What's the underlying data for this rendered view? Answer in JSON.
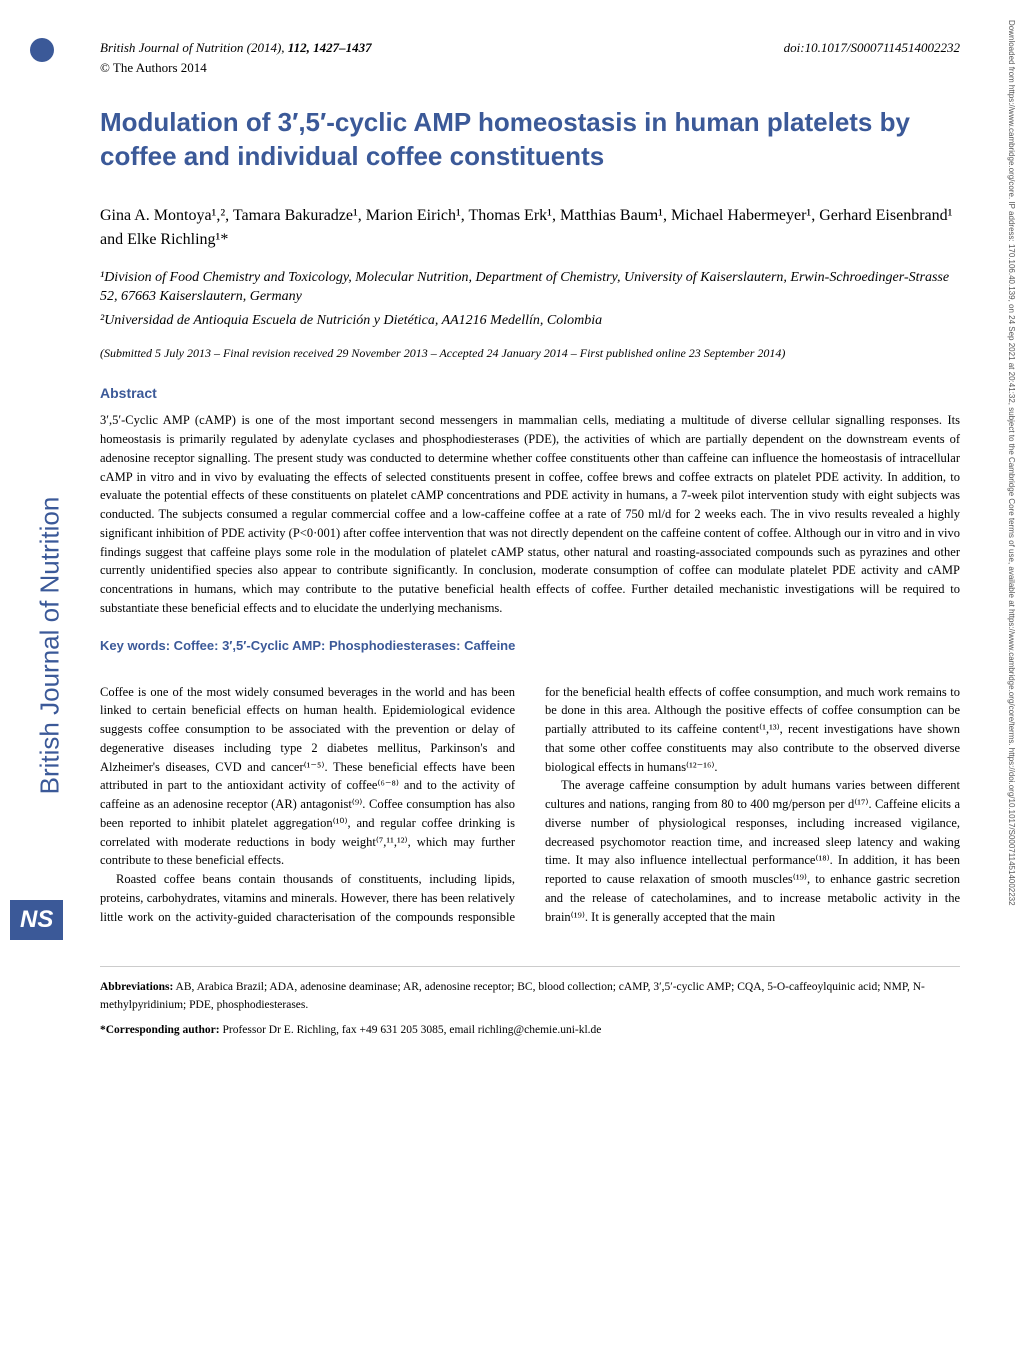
{
  "journal_header": {
    "journal_name": "British Journal of Nutrition",
    "year": "(2014)",
    "volume_pages": "112, 1427–1437",
    "doi": "doi:10.1017/S0007114514002232",
    "copyright": "© The Authors 2014"
  },
  "title": "Modulation of 3′,5′-cyclic AMP homeostasis in human platelets by coffee and individual coffee constituents",
  "authors": "Gina A. Montoya¹,², Tamara Bakuradze¹, Marion Eirich¹, Thomas Erk¹, Matthias Baum¹, Michael Habermeyer¹, Gerhard Eisenbrand¹ and Elke Richling¹*",
  "affiliations": {
    "aff1": "¹Division of Food Chemistry and Toxicology, Molecular Nutrition, Department of Chemistry, University of Kaiserslautern, Erwin-Schroedinger-Strasse 52, 67663 Kaiserslautern, Germany",
    "aff2": "²Universidad de Antioquia Escuela de Nutrición y Dietética, AA1216 Medellín, Colombia"
  },
  "dates": "(Submitted 5 July 2013 – Final revision received 29 November 2013 – Accepted 24 January 2014 – First published online 23 September 2014)",
  "abstract_heading": "Abstract",
  "abstract_text": "3′,5′-Cyclic AMP (cAMP) is one of the most important second messengers in mammalian cells, mediating a multitude of diverse cellular signalling responses. Its homeostasis is primarily regulated by adenylate cyclases and phosphodiesterases (PDE), the activities of which are partially dependent on the downstream events of adenosine receptor signalling. The present study was conducted to determine whether coffee constituents other than caffeine can influence the homeostasis of intracellular cAMP in vitro and in vivo by evaluating the effects of selected constituents present in coffee, coffee brews and coffee extracts on platelet PDE activity. In addition, to evaluate the potential effects of these constituents on platelet cAMP concentrations and PDE activity in humans, a 7-week pilot intervention study with eight subjects was conducted. The subjects consumed a regular commercial coffee and a low-caffeine coffee at a rate of 750 ml/d for 2 weeks each. The in vivo results revealed a highly significant inhibition of PDE activity (P<0·001) after coffee intervention that was not directly dependent on the caffeine content of coffee. Although our in vitro and in vivo findings suggest that caffeine plays some role in the modulation of platelet cAMP status, other natural and roasting-associated compounds such as pyrazines and other currently unidentified species also appear to contribute significantly. In conclusion, moderate consumption of coffee can modulate platelet PDE activity and cAMP concentrations in humans, which may contribute to the putative beneficial health effects of coffee. Further detailed mechanistic investigations will be required to substantiate these beneficial effects and to elucidate the underlying mechanisms.",
  "keywords": "Key words: Coffee: 3′,5′-Cyclic AMP: Phosphodiesterases: Caffeine",
  "body": {
    "para1": "Coffee is one of the most widely consumed beverages in the world and has been linked to certain beneficial effects on human health. Epidemiological evidence suggests coffee consumption to be associated with the prevention or delay of degenerative diseases including type 2 diabetes mellitus, Parkinson's and Alzheimer's diseases, CVD and cancer⁽¹⁻⁵⁾. These beneficial effects have been attributed in part to the antioxidant activity of coffee⁽⁶⁻⁸⁾ and to the activity of caffeine as an adenosine receptor (AR) antagonist⁽⁹⁾. Coffee consumption has also been reported to inhibit platelet aggregation⁽¹⁰⁾, and regular coffee drinking is correlated with moderate reductions in body weight⁽⁷,¹¹,¹²⁾, which may further contribute to these beneficial effects.",
    "para2": "Roasted coffee beans contain thousands of constituents, including lipids, proteins, carbohydrates, vitamins and minerals. However, there has been relatively little work on the activity-guided characterisation of the compounds responsible for the beneficial health effects of coffee consumption, and much work remains to be done in this area. Although the positive effects of coffee consumption can be partially attributed to its caffeine content⁽¹,¹³⁾, recent investigations have shown that some other coffee constituents may also contribute to the observed diverse biological effects in humans⁽¹²⁻¹⁶⁾.",
    "para3": "The average caffeine consumption by adult humans varies between different cultures and nations, ranging from 80 to 400 mg/person per d⁽¹⁷⁾. Caffeine elicits a diverse number of physiological responses, including increased vigilance, decreased psychomotor reaction time, and increased sleep latency and waking time. It may also influence intellectual performance⁽¹⁸⁾. In addition, it has been reported to cause relaxation of smooth muscles⁽¹⁹⁾, to enhance gastric secretion and the release of catecholamines, and to increase metabolic activity in the brain⁽¹⁹⁾. It is generally accepted that the main"
  },
  "footer": {
    "abbreviations": "Abbreviations: AB, Arabica Brazil; ADA, adenosine deaminase; AR, adenosine receptor; BC, blood collection; cAMP, 3′,5′-cyclic AMP; CQA, 5-O-caffeoylquinic acid; NMP, N-methylpyridinium; PDE, phosphodiesterases.",
    "corresponding": "*Corresponding author: Professor Dr E. Richling, fax +49 631 205 3085, email richling@chemie.uni-kl.de"
  },
  "sidebar": {
    "journal_vertical": "British Journal of Nutrition",
    "ns_logo": "NS"
  },
  "side_note": "Downloaded from https://www.cambridge.org/core. IP address: 170.106.40.139, on 24 Sep 2021 at 20:41:32, subject to the Cambridge Core terms of use, available at https://www.cambridge.org/core/terms. https://doi.org/10.1017/S0007114514002232",
  "colors": {
    "brand_blue": "#3b5998",
    "text_black": "#000000",
    "background": "#ffffff",
    "side_note_gray": "#555555"
  },
  "typography": {
    "title_fontsize": 26,
    "author_fontsize": 16,
    "body_fontsize": 12.5,
    "abstract_fontsize": 12.5,
    "footer_fontsize": 11.5
  }
}
